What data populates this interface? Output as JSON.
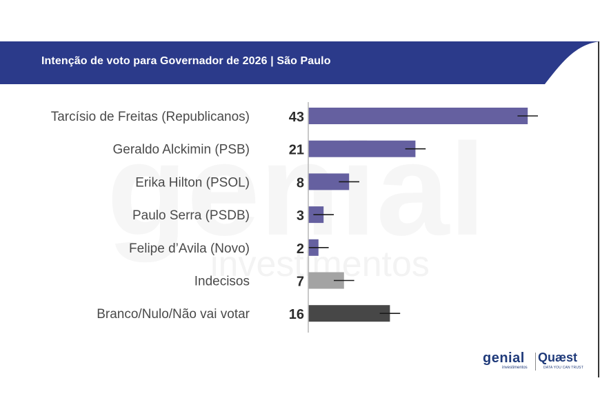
{
  "header": {
    "title": "Intenção de voto para Governador de 2026 | São Paulo"
  },
  "colors": {
    "header_bg": "#2b3a8a",
    "candidate_bar": "#6560a0",
    "undecided_bar": "#a3a3a3",
    "blank_bar": "#474747",
    "error_bar": "#1a1a1a"
  },
  "chart_data": {
    "type": "bar",
    "orientation": "horizontal",
    "title": "Intenção de voto para Governador de 2026 | São Paulo",
    "categories": [
      "Tarcísio de Freitas (Republicanos)",
      "Geraldo Alckimin (PSB)",
      "Erika Hilton (PSOL)",
      "Paulo Serra (PSDB)",
      "Felipe d’Avila (Novo)",
      "Indecisos",
      "Branco/Nulo/Não vai votar"
    ],
    "values": [
      43,
      21,
      8,
      3,
      2,
      7,
      16
    ],
    "error_margin": 2,
    "bar_colors": [
      "#6560a0",
      "#6560a0",
      "#6560a0",
      "#6560a0",
      "#6560a0",
      "#a3a3a3",
      "#474747"
    ],
    "xlim": [
      0,
      50
    ],
    "grid": false,
    "legend": "none"
  },
  "watermark": {
    "main": "genial",
    "sub": "investimentos"
  },
  "logos": {
    "genial": "genial",
    "genial_sub": "investimentos",
    "quaest": "Quæst",
    "quaest_sub": "DATA YOU CAN TRUST"
  }
}
